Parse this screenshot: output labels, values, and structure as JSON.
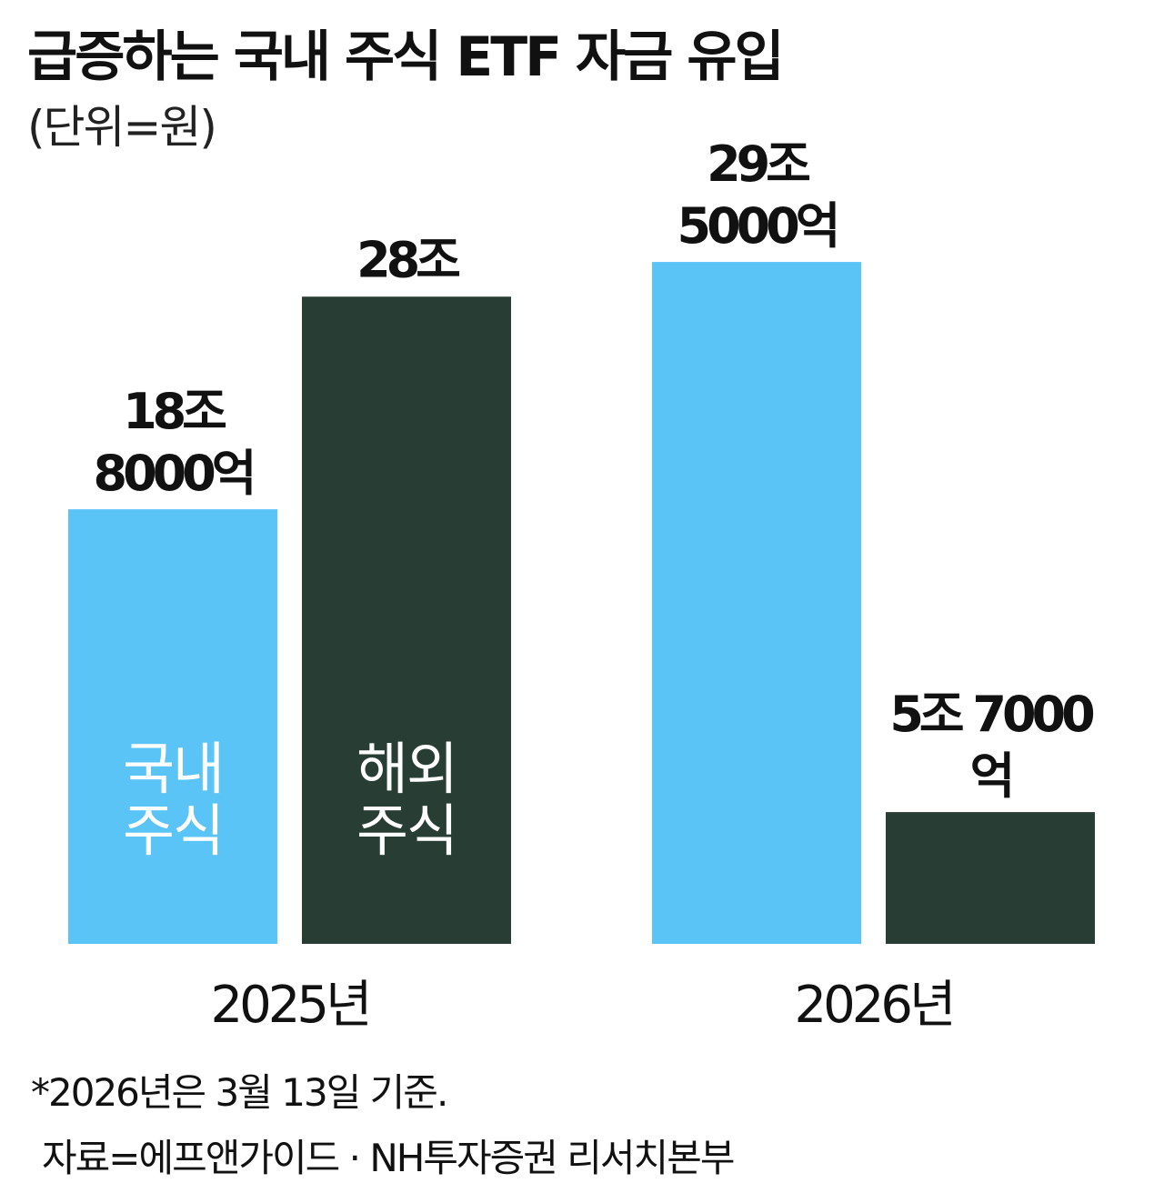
{
  "chart_data": {
    "type": "bar",
    "title": "급증하는 국내 주식 ETF 자금 유입",
    "subtitle": "(단위=원)",
    "categories": [
      "2025년",
      "2026년"
    ],
    "series": [
      {
        "name": "국내 주식",
        "color": "#5bc4f7",
        "values": [
          18.8,
          29.5
        ],
        "value_labels": [
          "18조 8000억",
          "29조 5000억"
        ]
      },
      {
        "name": "해외 주식",
        "color": "#283d33",
        "values": [
          28,
          5.7
        ],
        "value_labels": [
          "28조",
          "5조 7000억"
        ]
      }
    ],
    "note": "*2026년은 3월 13일 기준.",
    "source": "자료=에프앤가이드 · NH투자증권 리서치본부"
  }
}
